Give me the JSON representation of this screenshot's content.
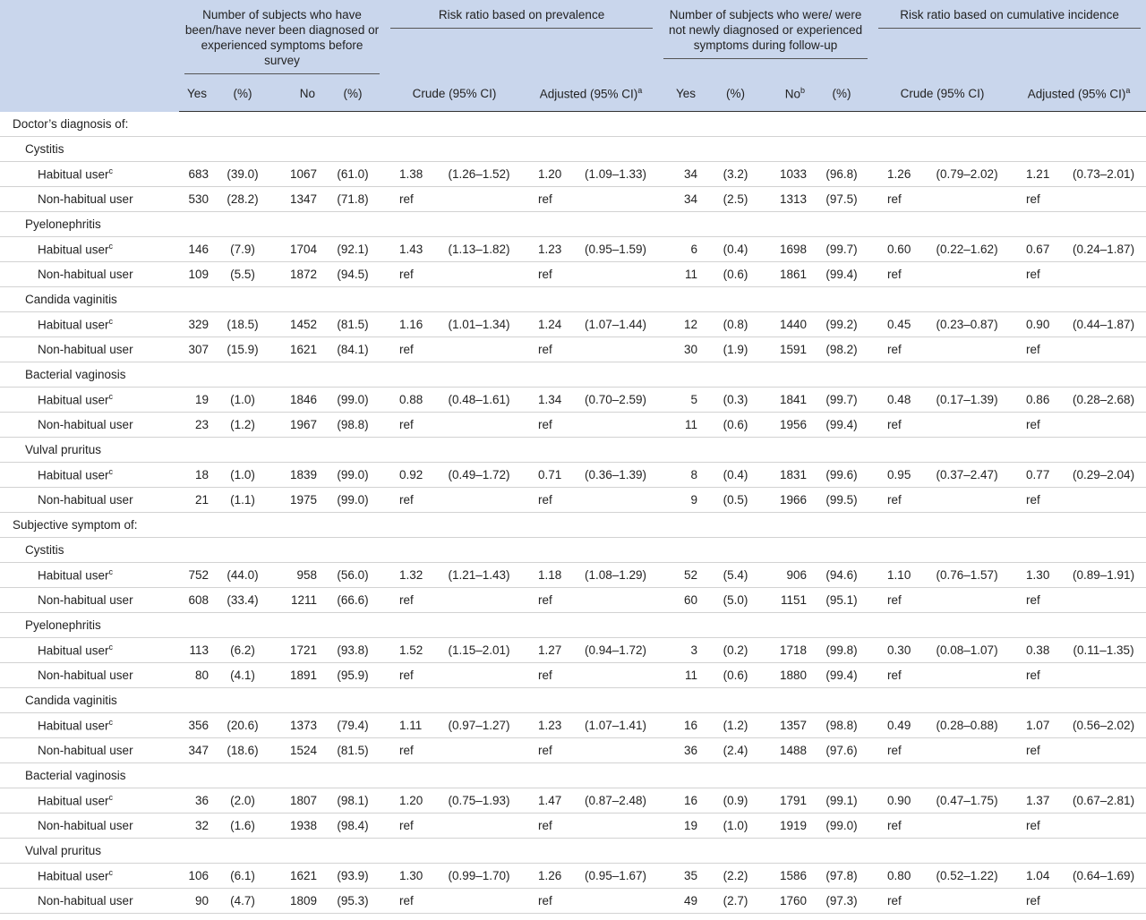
{
  "header": {
    "groups": [
      "Number of subjects who have been/have never been diagnosed or experienced symptoms before survey",
      "Risk ratio based on prevalence",
      "Number of subjects who were/ were not newly diagnosed or experienced symptoms during follow-up",
      "Risk ratio based on cumulative incidence"
    ],
    "columns": [
      {
        "text": "Yes"
      },
      {
        "text": "(%)"
      },
      {
        "text": "No"
      },
      {
        "text": "(%)"
      },
      {
        "text": "Crude (95% CI)"
      },
      {
        "text": "Adjusted (95% CI)",
        "sup": "a"
      },
      {
        "text": "Yes"
      },
      {
        "text": "(%)"
      },
      {
        "text": "No",
        "sup": "b"
      },
      {
        "text": "(%)"
      },
      {
        "text": "Crude (95% CI)"
      },
      {
        "text": "Adjusted (95% CI)",
        "sup": "a"
      }
    ]
  },
  "sections": [
    {
      "title": "Doctor’s diagnosis of:",
      "conditions": [
        {
          "name": "Cystitis",
          "rows": [
            {
              "label": "Habitual user",
              "sup": "c",
              "cells": [
                "683",
                "(39.0)",
                "1067",
                "(61.0)",
                "1.38",
                "(1.26–1.52)",
                "1.20",
                "(1.09–1.33)",
                "34",
                "(3.2)",
                "1033",
                "(96.8)",
                "1.26",
                "(0.79–2.02)",
                "1.21",
                "(0.73–2.01)"
              ]
            },
            {
              "label": "Non-habitual user",
              "cells": [
                "530",
                "(28.2)",
                "1347",
                "(71.8)",
                "ref",
                null,
                "ref",
                null,
                "34",
                "(2.5)",
                "1313",
                "(97.5)",
                "ref",
                null,
                "ref",
                null
              ]
            }
          ]
        },
        {
          "name": "Pyelonephritis",
          "rows": [
            {
              "label": "Habitual user",
              "sup": "c",
              "cells": [
                "146",
                "(7.9)",
                "1704",
                "(92.1)",
                "1.43",
                "(1.13–1.82)",
                "1.23",
                "(0.95–1.59)",
                "6",
                "(0.4)",
                "1698",
                "(99.7)",
                "0.60",
                "(0.22–1.62)",
                "0.67",
                "(0.24–1.87)"
              ]
            },
            {
              "label": "Non-habitual user",
              "cells": [
                "109",
                "(5.5)",
                "1872",
                "(94.5)",
                "ref",
                null,
                "ref",
                null,
                "11",
                "(0.6)",
                "1861",
                "(99.4)",
                "ref",
                null,
                "ref",
                null
              ]
            }
          ]
        },
        {
          "name": "Candida vaginitis",
          "rows": [
            {
              "label": "Habitual user",
              "sup": "c",
              "cells": [
                "329",
                "(18.5)",
                "1452",
                "(81.5)",
                "1.16",
                "(1.01–1.34)",
                "1.24",
                "(1.07–1.44)",
                "12",
                "(0.8)",
                "1440",
                "(99.2)",
                "0.45",
                "(0.23–0.87)",
                "0.90",
                "(0.44–1.87)"
              ]
            },
            {
              "label": "Non-habitual user",
              "cells": [
                "307",
                "(15.9)",
                "1621",
                "(84.1)",
                "ref",
                null,
                "ref",
                null,
                "30",
                "(1.9)",
                "1591",
                "(98.2)",
                "ref",
                null,
                "ref",
                null
              ]
            }
          ]
        },
        {
          "name": "Bacterial vaginosis",
          "rows": [
            {
              "label": "Habitual user",
              "sup": "c",
              "cells": [
                "19",
                "(1.0)",
                "1846",
                "(99.0)",
                "0.88",
                "(0.48–1.61)",
                "1.34",
                "(0.70–2.59)",
                "5",
                "(0.3)",
                "1841",
                "(99.7)",
                "0.48",
                "(0.17–1.39)",
                "0.86",
                "(0.28–2.68)"
              ]
            },
            {
              "label": "Non-habitual user",
              "cells": [
                "23",
                "(1.2)",
                "1967",
                "(98.8)",
                "ref",
                null,
                "ref",
                null,
                "11",
                "(0.6)",
                "1956",
                "(99.4)",
                "ref",
                null,
                "ref",
                null
              ]
            }
          ]
        },
        {
          "name": "Vulval pruritus",
          "rows": [
            {
              "label": "Habitual user",
              "sup": "c",
              "cells": [
                "18",
                "(1.0)",
                "1839",
                "(99.0)",
                "0.92",
                "(0.49–1.72)",
                "0.71",
                "(0.36–1.39)",
                "8",
                "(0.4)",
                "1831",
                "(99.6)",
                "0.95",
                "(0.37–2.47)",
                "0.77",
                "(0.29–2.04)"
              ]
            },
            {
              "label": "Non-habitual user",
              "cells": [
                "21",
                "(1.1)",
                "1975",
                "(99.0)",
                "ref",
                null,
                "ref",
                null,
                "9",
                "(0.5)",
                "1966",
                "(99.5)",
                "ref",
                null,
                "ref",
                null
              ]
            }
          ]
        }
      ]
    },
    {
      "title": "Subjective symptom of:",
      "conditions": [
        {
          "name": "Cystitis",
          "rows": [
            {
              "label": "Habitual user",
              "sup": "c",
              "cells": [
                "752",
                "(44.0)",
                "958",
                "(56.0)",
                "1.32",
                "(1.21–1.43)",
                "1.18",
                "(1.08–1.29)",
                "52",
                "(5.4)",
                "906",
                "(94.6)",
                "1.10",
                "(0.76–1.57)",
                "1.30",
                "(0.89–1.91)"
              ]
            },
            {
              "label": "Non-habitual user",
              "cells": [
                "608",
                "(33.4)",
                "1211",
                "(66.6)",
                "ref",
                null,
                "ref",
                null,
                "60",
                "(5.0)",
                "1151",
                "(95.1)",
                "ref",
                null,
                "ref",
                null
              ]
            }
          ]
        },
        {
          "name": "Pyelonephritis",
          "rows": [
            {
              "label": "Habitual user",
              "sup": "c",
              "cells": [
                "113",
                "(6.2)",
                "1721",
                "(93.8)",
                "1.52",
                "(1.15–2.01)",
                "1.27",
                "(0.94–1.72)",
                "3",
                "(0.2)",
                "1718",
                "(99.8)",
                "0.30",
                "(0.08–1.07)",
                "0.38",
                "(0.11–1.35)"
              ]
            },
            {
              "label": "Non-habitual user",
              "cells": [
                "80",
                "(4.1)",
                "1891",
                "(95.9)",
                "ref",
                null,
                "ref",
                null,
                "11",
                "(0.6)",
                "1880",
                "(99.4)",
                "ref",
                null,
                "ref",
                null
              ]
            }
          ]
        },
        {
          "name": "Candida vaginitis",
          "rows": [
            {
              "label": "Habitual user",
              "sup": "c",
              "cells": [
                "356",
                "(20.6)",
                "1373",
                "(79.4)",
                "1.11",
                "(0.97–1.27)",
                "1.23",
                "(1.07–1.41)",
                "16",
                "(1.2)",
                "1357",
                "(98.8)",
                "0.49",
                "(0.28–0.88)",
                "1.07",
                "(0.56–2.02)"
              ]
            },
            {
              "label": "Non-habitual user",
              "cells": [
                "347",
                "(18.6)",
                "1524",
                "(81.5)",
                "ref",
                null,
                "ref",
                null,
                "36",
                "(2.4)",
                "1488",
                "(97.6)",
                "ref",
                null,
                "ref",
                null
              ]
            }
          ]
        },
        {
          "name": "Bacterial vaginosis",
          "rows": [
            {
              "label": "Habitual user",
              "sup": "c",
              "cells": [
                "36",
                "(2.0)",
                "1807",
                "(98.1)",
                "1.20",
                "(0.75–1.93)",
                "1.47",
                "(0.87–2.48)",
                "16",
                "(0.9)",
                "1791",
                "(99.1)",
                "0.90",
                "(0.47–1.75)",
                "1.37",
                "(0.67–2.81)"
              ]
            },
            {
              "label": "Non-habitual user",
              "cells": [
                "32",
                "(1.6)",
                "1938",
                "(98.4)",
                "ref",
                null,
                "ref",
                null,
                "19",
                "(1.0)",
                "1919",
                "(99.0)",
                "ref",
                null,
                "ref",
                null
              ]
            }
          ]
        },
        {
          "name": "Vulval pruritus",
          "rows": [
            {
              "label": "Habitual user",
              "sup": "c",
              "cells": [
                "106",
                "(6.1)",
                "1621",
                "(93.9)",
                "1.30",
                "(0.99–1.70)",
                "1.26",
                "(0.95–1.67)",
                "35",
                "(2.2)",
                "1586",
                "(97.8)",
                "0.80",
                "(0.52–1.22)",
                "1.04",
                "(0.64–1.69)"
              ]
            },
            {
              "label": "Non-habitual user",
              "cells": [
                "90",
                "(4.7)",
                "1809",
                "(95.3)",
                "ref",
                null,
                "ref",
                null,
                "49",
                "(2.7)",
                "1760",
                "(97.3)",
                "ref",
                null,
                "ref",
                null
              ]
            }
          ]
        }
      ]
    }
  ]
}
